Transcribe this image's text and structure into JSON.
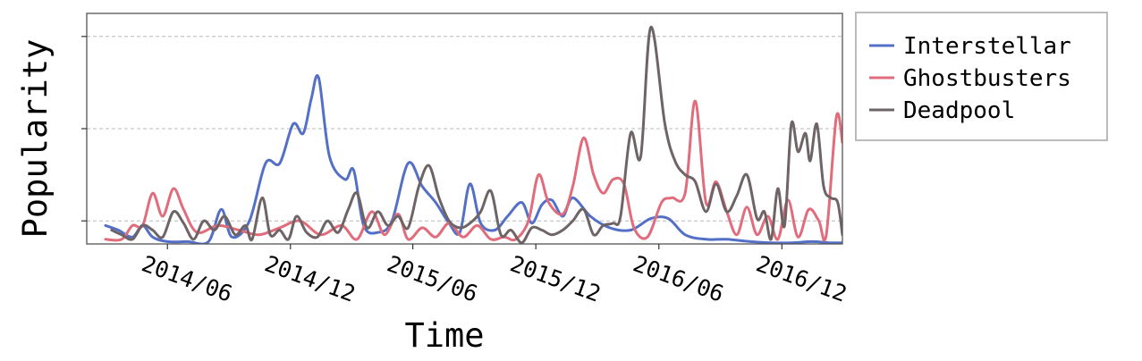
{
  "chart_data": {
    "type": "line",
    "xlabel": "Time",
    "ylabel": "Popularity",
    "x_tick_labels": [
      "2014/06",
      "2014/12",
      "2015/06",
      "2015/12",
      "2016/06",
      "2016/12"
    ],
    "x_tick_dates": [
      "2014-06-01",
      "2014-12-01",
      "2015-06-01",
      "2015-12-01",
      "2016-06-01",
      "2016-12-01"
    ],
    "xlim": [
      "2014-02-01",
      "2017-03-01"
    ],
    "ylim": [
      0,
      100
    ],
    "y_ticks": [
      10,
      50,
      90
    ],
    "y_tick_labels_visible": false,
    "grid": "horizontal dashed",
    "legend_position": "outside right",
    "series": [
      {
        "name": "Interstellar",
        "color": "#5470c6",
        "points": [
          [
            "2014-03-01",
            8
          ],
          [
            "2014-03-20",
            6
          ],
          [
            "2014-04-10",
            3
          ],
          [
            "2014-04-25",
            8
          ],
          [
            "2014-05-10",
            3
          ],
          [
            "2014-06-01",
            1
          ],
          [
            "2014-07-01",
            1
          ],
          [
            "2014-08-01",
            1
          ],
          [
            "2014-08-20",
            15
          ],
          [
            "2014-09-05",
            3
          ],
          [
            "2014-10-01",
            10
          ],
          [
            "2014-10-25",
            35
          ],
          [
            "2014-11-15",
            35
          ],
          [
            "2014-12-05",
            52
          ],
          [
            "2014-12-20",
            48
          ],
          [
            "2015-01-01",
            63
          ],
          [
            "2015-01-12",
            72
          ],
          [
            "2015-01-28",
            38
          ],
          [
            "2015-02-20",
            28
          ],
          [
            "2015-03-05",
            32
          ],
          [
            "2015-03-20",
            8
          ],
          [
            "2015-04-10",
            5
          ],
          [
            "2015-05-01",
            10
          ],
          [
            "2015-05-25",
            35
          ],
          [
            "2015-06-15",
            25
          ],
          [
            "2015-07-05",
            18
          ],
          [
            "2015-07-25",
            9
          ],
          [
            "2015-08-10",
            5
          ],
          [
            "2015-08-25",
            26
          ],
          [
            "2015-09-10",
            9
          ],
          [
            "2015-10-01",
            6
          ],
          [
            "2015-10-20",
            12
          ],
          [
            "2015-11-10",
            18
          ],
          [
            "2015-11-25",
            9
          ],
          [
            "2015-12-10",
            17
          ],
          [
            "2015-12-25",
            19
          ],
          [
            "2016-01-10",
            12
          ],
          [
            "2016-01-25",
            20
          ],
          [
            "2016-02-20",
            12
          ],
          [
            "2016-03-20",
            7
          ],
          [
            "2016-04-20",
            6
          ],
          [
            "2016-05-20",
            11
          ],
          [
            "2016-06-15",
            11
          ],
          [
            "2016-07-10",
            4
          ],
          [
            "2016-08-10",
            2
          ],
          [
            "2016-09-10",
            2
          ],
          [
            "2016-10-15",
            1
          ],
          [
            "2016-11-15",
            0.5
          ],
          [
            "2016-12-15",
            0.5
          ],
          [
            "2017-01-15",
            1
          ],
          [
            "2017-02-10",
            0.5
          ],
          [
            "2017-03-01",
            0.5
          ]
        ]
      },
      {
        "name": "Ghostbusters",
        "color": "#e06c7c",
        "points": [
          [
            "2014-03-01",
            2
          ],
          [
            "2014-03-25",
            2
          ],
          [
            "2014-04-10",
            8
          ],
          [
            "2014-04-25",
            8
          ],
          [
            "2014-05-10",
            22
          ],
          [
            "2014-05-25",
            12
          ],
          [
            "2014-06-10",
            24
          ],
          [
            "2014-06-25",
            15
          ],
          [
            "2014-07-15",
            5
          ],
          [
            "2014-08-15",
            8
          ],
          [
            "2014-09-15",
            6
          ],
          [
            "2014-10-15",
            4
          ],
          [
            "2014-11-15",
            7
          ],
          [
            "2014-12-15",
            10
          ],
          [
            "2015-01-15",
            4
          ],
          [
            "2015-02-15",
            8
          ],
          [
            "2015-03-10",
            2
          ],
          [
            "2015-04-01",
            14
          ],
          [
            "2015-04-20",
            4
          ],
          [
            "2015-05-10",
            13
          ],
          [
            "2015-05-25",
            2
          ],
          [
            "2015-06-15",
            7
          ],
          [
            "2015-07-05",
            3
          ],
          [
            "2015-07-25",
            9
          ],
          [
            "2015-08-15",
            3
          ],
          [
            "2015-09-05",
            8
          ],
          [
            "2015-09-25",
            2
          ],
          [
            "2015-10-15",
            3
          ],
          [
            "2015-11-01",
            2
          ],
          [
            "2015-11-20",
            10
          ],
          [
            "2015-12-05",
            30
          ],
          [
            "2015-12-20",
            18
          ],
          [
            "2016-01-10",
            13
          ],
          [
            "2016-01-25",
            25
          ],
          [
            "2016-02-10",
            46
          ],
          [
            "2016-02-25",
            30
          ],
          [
            "2016-03-10",
            22
          ],
          [
            "2016-03-25",
            28
          ],
          [
            "2016-04-10",
            26
          ],
          [
            "2016-04-25",
            7
          ],
          [
            "2016-05-15",
            3
          ],
          [
            "2016-06-05",
            18
          ],
          [
            "2016-06-20",
            20
          ],
          [
            "2016-07-10",
            22
          ],
          [
            "2016-07-25",
            62
          ],
          [
            "2016-08-10",
            18
          ],
          [
            "2016-08-25",
            27
          ],
          [
            "2016-09-10",
            14
          ],
          [
            "2016-09-25",
            4
          ],
          [
            "2016-10-10",
            16
          ],
          [
            "2016-10-25",
            4
          ],
          [
            "2016-11-10",
            12
          ],
          [
            "2016-11-25",
            2
          ],
          [
            "2016-12-10",
            19
          ],
          [
            "2016-12-25",
            3
          ],
          [
            "2017-01-10",
            15
          ],
          [
            "2017-01-25",
            10
          ],
          [
            "2017-02-05",
            4
          ],
          [
            "2017-02-20",
            55
          ],
          [
            "2017-03-01",
            44
          ]
        ]
      },
      {
        "name": "Deadpool",
        "color": "#6e6466",
        "points": [
          [
            "2014-03-10",
            6
          ],
          [
            "2014-03-25",
            4
          ],
          [
            "2014-04-10",
            2
          ],
          [
            "2014-04-25",
            8
          ],
          [
            "2014-05-10",
            6
          ],
          [
            "2014-05-25",
            3
          ],
          [
            "2014-06-10",
            14
          ],
          [
            "2014-06-25",
            9
          ],
          [
            "2014-07-10",
            2
          ],
          [
            "2014-07-25",
            10
          ],
          [
            "2014-08-10",
            6
          ],
          [
            "2014-08-25",
            12
          ],
          [
            "2014-09-10",
            4
          ],
          [
            "2014-09-25",
            8
          ],
          [
            "2014-10-05",
            2
          ],
          [
            "2014-10-20",
            20
          ],
          [
            "2014-11-01",
            4
          ],
          [
            "2014-11-15",
            6
          ],
          [
            "2014-11-28",
            2
          ],
          [
            "2014-12-10",
            12
          ],
          [
            "2014-12-25",
            5
          ],
          [
            "2015-01-10",
            3
          ],
          [
            "2015-01-25",
            10
          ],
          [
            "2015-02-10",
            5
          ],
          [
            "2015-02-25",
            15
          ],
          [
            "2015-03-10",
            22
          ],
          [
            "2015-03-25",
            7
          ],
          [
            "2015-04-10",
            14
          ],
          [
            "2015-04-25",
            8
          ],
          [
            "2015-05-10",
            12
          ],
          [
            "2015-05-25",
            7
          ],
          [
            "2015-06-10",
            25
          ],
          [
            "2015-06-25",
            34
          ],
          [
            "2015-07-10",
            20
          ],
          [
            "2015-07-25",
            10
          ],
          [
            "2015-08-10",
            7
          ],
          [
            "2015-08-25",
            9
          ],
          [
            "2015-09-10",
            14
          ],
          [
            "2015-09-25",
            23
          ],
          [
            "2015-10-10",
            4
          ],
          [
            "2015-10-25",
            6
          ],
          [
            "2015-11-10",
            0.5
          ],
          [
            "2015-11-25",
            7
          ],
          [
            "2015-12-10",
            6
          ],
          [
            "2015-12-25",
            4
          ],
          [
            "2016-01-10",
            6
          ],
          [
            "2016-01-25",
            10
          ],
          [
            "2016-02-10",
            15
          ],
          [
            "2016-02-25",
            4
          ],
          [
            "2016-03-10",
            8
          ],
          [
            "2016-03-25",
            9
          ],
          [
            "2016-04-05",
            12
          ],
          [
            "2016-04-20",
            48
          ],
          [
            "2016-05-05",
            38
          ],
          [
            "2016-05-20",
            94
          ],
          [
            "2016-06-10",
            52
          ],
          [
            "2016-06-25",
            36
          ],
          [
            "2016-07-10",
            30
          ],
          [
            "2016-07-25",
            27
          ],
          [
            "2016-08-10",
            14
          ],
          [
            "2016-08-25",
            26
          ],
          [
            "2016-09-10",
            14
          ],
          [
            "2016-09-25",
            21
          ],
          [
            "2016-10-10",
            30
          ],
          [
            "2016-10-25",
            11
          ],
          [
            "2016-11-05",
            14
          ],
          [
            "2016-11-15",
            2
          ],
          [
            "2016-11-25",
            24
          ],
          [
            "2016-12-05",
            8
          ],
          [
            "2016-12-15",
            52
          ],
          [
            "2016-12-25",
            40
          ],
          [
            "2017-01-05",
            48
          ],
          [
            "2017-01-12",
            36
          ],
          [
            "2017-01-22",
            52
          ],
          [
            "2017-02-01",
            25
          ],
          [
            "2017-02-12",
            20
          ],
          [
            "2017-02-22",
            18
          ],
          [
            "2017-03-01",
            4
          ]
        ]
      }
    ]
  }
}
